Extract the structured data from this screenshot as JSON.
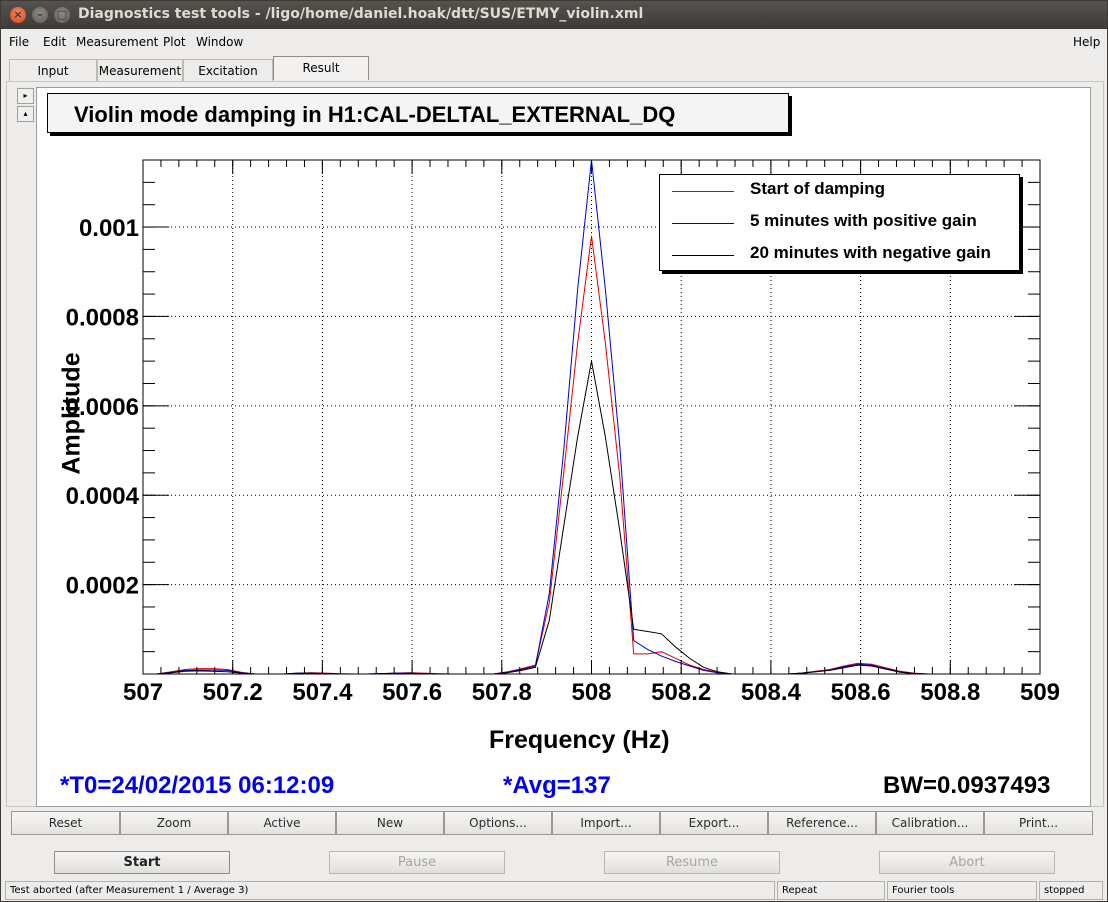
{
  "window": {
    "title": "Diagnostics test tools - /ligo/home/daniel.hoak/dtt/SUS/ETMY_violin.xml"
  },
  "menubar": {
    "items": [
      "File",
      "Edit",
      "Measurement",
      "Plot",
      "Window"
    ],
    "help": "Help"
  },
  "tabs": [
    "Input",
    "Measurement",
    "Excitation",
    "Result"
  ],
  "tab_selected": "Result",
  "side_buttons": {
    "up": "▸",
    "down": "▴"
  },
  "plot": {
    "title": "Violin mode damping in H1:CAL-DELTAL_EXTERNAL_DQ",
    "xlabel": "Frequency (Hz)",
    "ylabel": "Amplitude",
    "info_t0": "*T0=24/02/2015 06:12:09",
    "info_avg": "*Avg=137",
    "info_bw": "BW=0.0937493"
  },
  "chart_data": {
    "type": "line",
    "title": "Violin mode damping in H1:CAL-DELTAL_EXTERNAL_DQ",
    "xlabel": "Frequency (Hz)",
    "ylabel": "Amplitude",
    "xlim": [
      507,
      509
    ],
    "ylim": [
      0,
      0.00115
    ],
    "grid": true,
    "legend_position": "top-right",
    "x_ticks": [
      "507",
      "507.2",
      "507.4",
      "507.6",
      "507.8",
      "508",
      "508.2",
      "508.4",
      "508.6",
      "508.8",
      "509"
    ],
    "y_ticks": [
      {
        "value": 0.0002,
        "label": "0.0002"
      },
      {
        "value": 0.0004,
        "label": "0.0004"
      },
      {
        "value": 0.0006,
        "label": "0.0006"
      },
      {
        "value": 0.0008,
        "label": "0.0008"
      },
      {
        "value": 0.001,
        "label": "0.001"
      }
    ],
    "x": [
      507.0,
      507.031,
      507.063,
      507.094,
      507.125,
      507.156,
      507.188,
      507.219,
      507.25,
      507.281,
      507.313,
      507.344,
      507.375,
      507.406,
      507.438,
      507.469,
      507.5,
      507.531,
      507.563,
      507.594,
      507.625,
      507.656,
      507.688,
      507.719,
      507.75,
      507.781,
      507.813,
      507.844,
      507.875,
      507.906,
      507.938,
      507.969,
      508.0,
      508.031,
      508.063,
      508.094,
      508.125,
      508.156,
      508.188,
      508.219,
      508.25,
      508.281,
      508.313,
      508.344,
      508.375,
      508.406,
      508.438,
      508.469,
      508.5,
      508.531,
      508.563,
      508.594,
      508.625,
      508.656,
      508.688,
      508.719,
      508.75,
      508.781,
      508.813,
      508.844,
      508.875,
      508.906,
      508.938,
      508.969,
      509.0
    ],
    "series": [
      {
        "name": "Start of damping",
        "color": "#e00000",
        "values": [
          0,
          0,
          5e-06,
          1e-05,
          1.2e-05,
          1.2e-05,
          1e-05,
          4e-06,
          0,
          0,
          0,
          2e-06,
          3e-06,
          2e-06,
          1e-06,
          0,
          0,
          1e-06,
          2e-06,
          3e-06,
          2e-06,
          1e-06,
          0,
          0,
          0,
          0,
          5e-06,
          1.2e-05,
          2e-05,
          0.00016,
          0.00045,
          0.00074,
          0.00098,
          0.00074,
          0.00044,
          4.5e-05,
          4.5e-05,
          5e-05,
          3.5e-05,
          2e-05,
          1e-05,
          4e-06,
          0,
          0,
          0,
          0,
          0,
          2e-06,
          6e-06,
          1e-05,
          1.8e-05,
          2.4e-05,
          2.2e-05,
          1.4e-05,
          6e-06,
          2e-06,
          0,
          0,
          0,
          0,
          0,
          0,
          0,
          0,
          0
        ]
      },
      {
        "name": "5 minutes with positive gain",
        "color": "#0000cc",
        "values": [
          0,
          0,
          4e-06,
          8e-06,
          9e-06,
          9e-06,
          8e-06,
          3e-06,
          0,
          0,
          0,
          2e-06,
          2e-06,
          1e-06,
          0,
          0,
          0,
          1e-06,
          2e-06,
          2e-06,
          1e-06,
          0,
          0,
          0,
          0,
          0,
          4e-06,
          1e-05,
          1.8e-05,
          0.00018,
          0.0005,
          0.00086,
          0.00115,
          0.00086,
          0.00051,
          7.5e-05,
          5.5e-05,
          4e-05,
          2.8e-05,
          1.8e-05,
          8e-06,
          3e-06,
          0,
          0,
          0,
          0,
          0,
          2e-06,
          5e-06,
          9e-06,
          1.6e-05,
          2.2e-05,
          2e-05,
          1.2e-05,
          5e-06,
          1e-06,
          0,
          0,
          0,
          0,
          0,
          0,
          0,
          0,
          0
        ]
      },
      {
        "name": "20 minutes with negative gain",
        "color": "#000000",
        "values": [
          0,
          0,
          3e-06,
          6e-06,
          7e-06,
          6e-06,
          5e-06,
          2e-06,
          0,
          0,
          0,
          1e-06,
          2e-06,
          1e-06,
          0,
          0,
          0,
          1e-06,
          1e-06,
          2e-06,
          1e-06,
          0,
          0,
          0,
          0,
          0,
          3e-06,
          8e-06,
          1.5e-05,
          0.00012,
          0.00033,
          0.00053,
          0.0007,
          0.00053,
          0.00032,
          0.0001,
          9.5e-05,
          9e-05,
          6e-05,
          3.5e-05,
          1.5e-05,
          5e-06,
          0,
          0,
          0,
          0,
          0,
          2e-06,
          5e-06,
          8e-06,
          1.4e-05,
          2e-05,
          1.8e-05,
          1.1e-05,
          4e-06,
          1e-06,
          0,
          0,
          0,
          0,
          0,
          0,
          0,
          0,
          0
        ]
      }
    ]
  },
  "plot_buttons": [
    "Reset",
    "Zoom",
    "Active",
    "New",
    "Options...",
    "Import...",
    "Export...",
    "Reference...",
    "Calibration...",
    "Print..."
  ],
  "run_buttons": {
    "start": "Start",
    "pause": "Pause",
    "resume": "Resume",
    "abort": "Abort"
  },
  "status": {
    "message": "Test aborted (after Measurement 1 / Average 3)",
    "mode": "Repeat",
    "tool": "Fourier tools",
    "state": "stopped"
  }
}
